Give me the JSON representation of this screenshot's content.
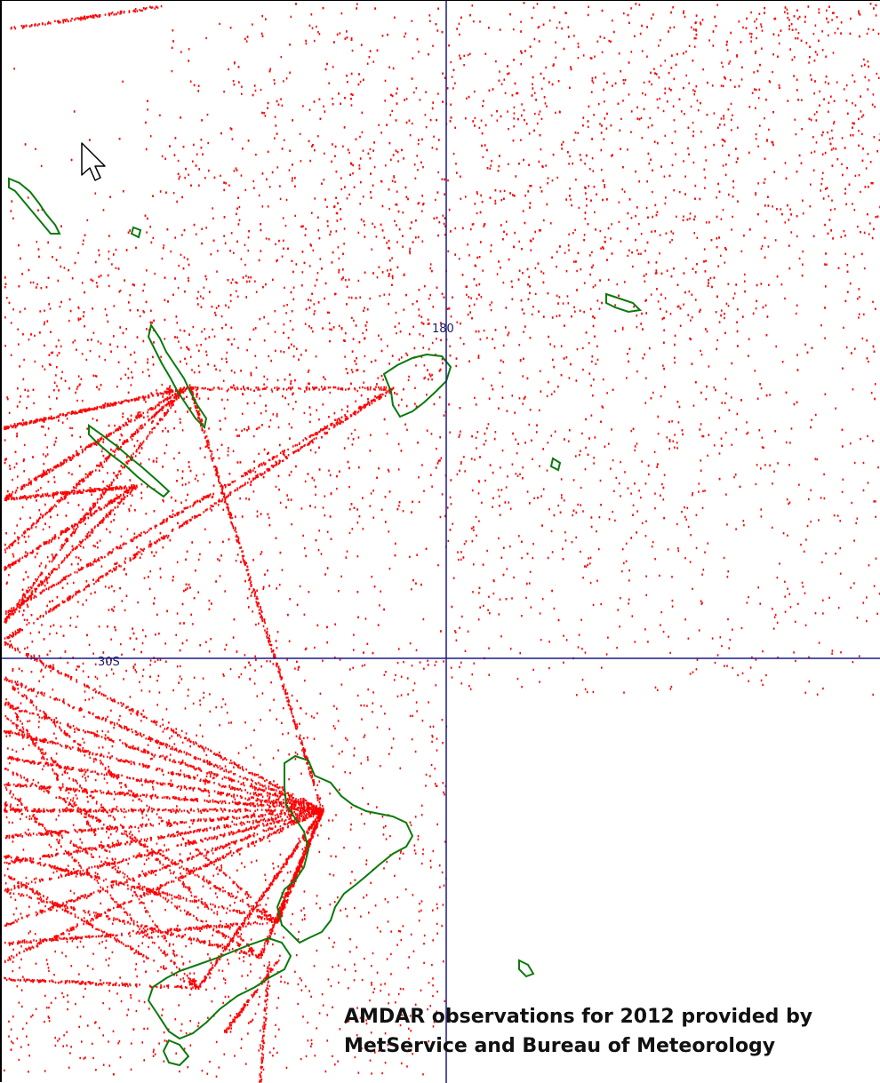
{
  "map": {
    "meridian_label": "180",
    "parallel_label": "30S",
    "caption_line_1": "AMDAR observations for 2012 provided by",
    "caption_line_2": "MetService and Bureau of Meteorology"
  },
  "layers": [
    {
      "name": "AMDAR observations",
      "color": "#ff0000"
    },
    {
      "name": "Coastlines",
      "color": "#0a7a0a"
    },
    {
      "name": "Graticule",
      "color": "#1a1a8c"
    }
  ],
  "icons": {
    "cursor": "mouse-pointer-icon"
  }
}
